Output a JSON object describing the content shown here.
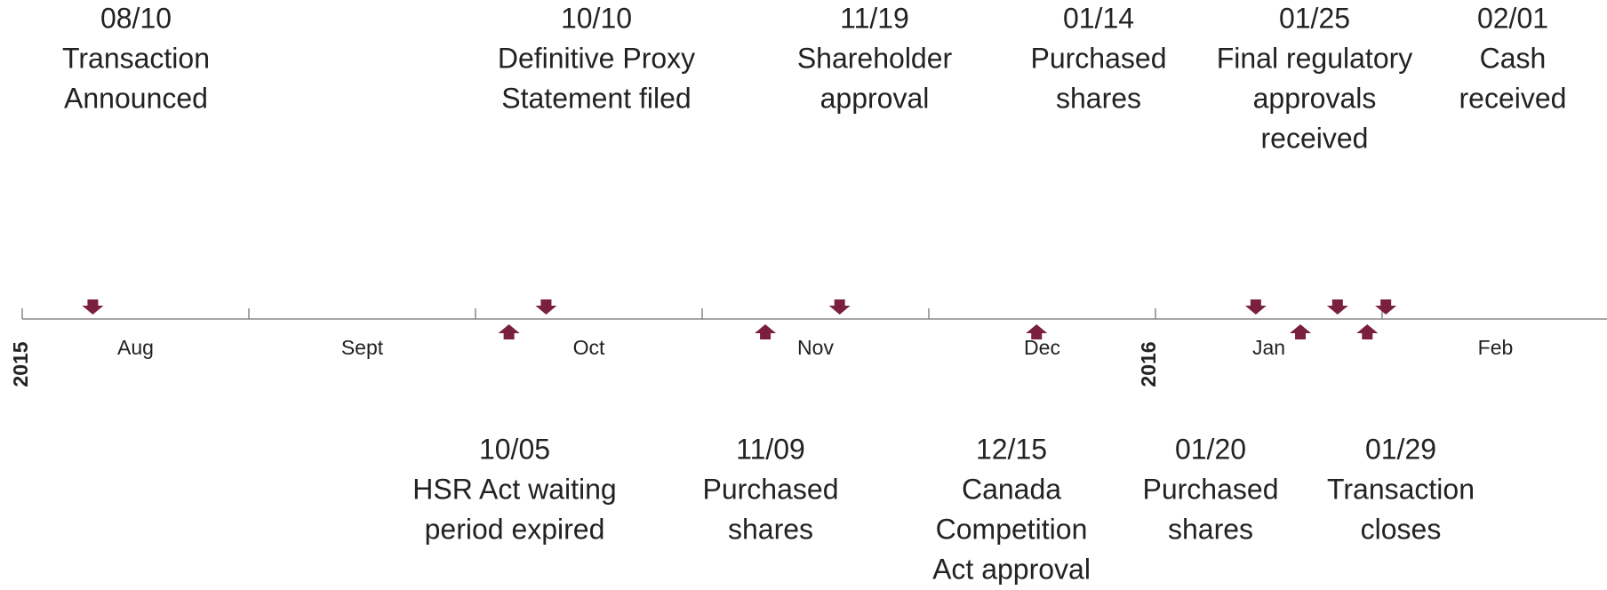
{
  "years": [
    "2015",
    "2016"
  ],
  "months": [
    "Aug",
    "Sept",
    "Oct",
    "Nov",
    "Dec",
    "Jan",
    "Feb"
  ],
  "events_above": [
    {
      "date": "08/10",
      "lines": [
        "Transaction",
        "Announced"
      ]
    },
    {
      "date": "10/10",
      "lines": [
        "Definitive Proxy",
        "Statement filed"
      ]
    },
    {
      "date": "11/19",
      "lines": [
        "Shareholder",
        "approval"
      ]
    },
    {
      "date": "01/14",
      "lines": [
        "Purchased",
        "shares"
      ]
    },
    {
      "date": "01/25",
      "lines": [
        "Final regulatory",
        "approvals",
        "received"
      ]
    },
    {
      "date": "02/01",
      "lines": [
        "Cash",
        "received"
      ]
    }
  ],
  "events_below": [
    {
      "date": "10/05",
      "lines": [
        "HSR Act waiting",
        "period expired"
      ]
    },
    {
      "date": "11/09",
      "lines": [
        "Purchased",
        "shares"
      ]
    },
    {
      "date": "12/15",
      "lines": [
        "Canada",
        "Competition",
        "Act approval"
      ]
    },
    {
      "date": "01/20",
      "lines": [
        "Purchased",
        "shares"
      ]
    },
    {
      "date": "01/29",
      "lines": [
        "Transaction",
        "closes"
      ]
    }
  ]
}
